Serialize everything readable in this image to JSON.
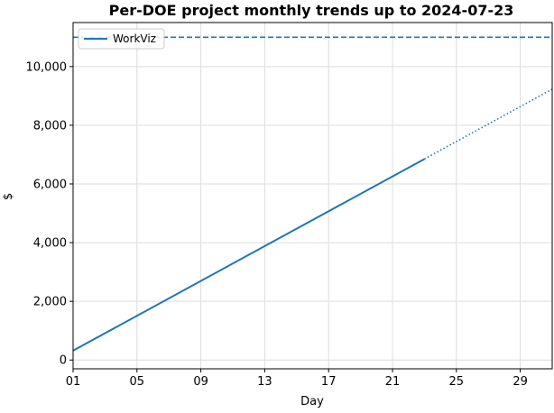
{
  "chart_data": {
    "type": "line",
    "title": "Per-DOE project monthly trends up to 2024-07-23",
    "xlabel": "Day",
    "ylabel": "$",
    "xlim": [
      1,
      31
    ],
    "ylim": [
      -300,
      11500
    ],
    "x_ticks": [
      1,
      5,
      9,
      13,
      17,
      21,
      25,
      29
    ],
    "x_tick_labels": [
      "01",
      "05",
      "09",
      "13",
      "17",
      "21",
      "25",
      "29"
    ],
    "y_ticks": [
      0,
      2000,
      4000,
      6000,
      8000,
      10000
    ],
    "y_tick_labels": [
      "0",
      "2,000",
      "4,000",
      "6,000",
      "8,000",
      "10,000"
    ],
    "grid": true,
    "legend_position": "top-left",
    "series": [
      {
        "name": "WorkViz",
        "color": "#1f77b4",
        "actual": {
          "x": [
            1,
            23
          ],
          "y": [
            320,
            6850
          ]
        },
        "projection": {
          "x": [
            23,
            31
          ],
          "y": [
            6850,
            9230
          ]
        },
        "budget_line": 11000
      }
    ]
  }
}
